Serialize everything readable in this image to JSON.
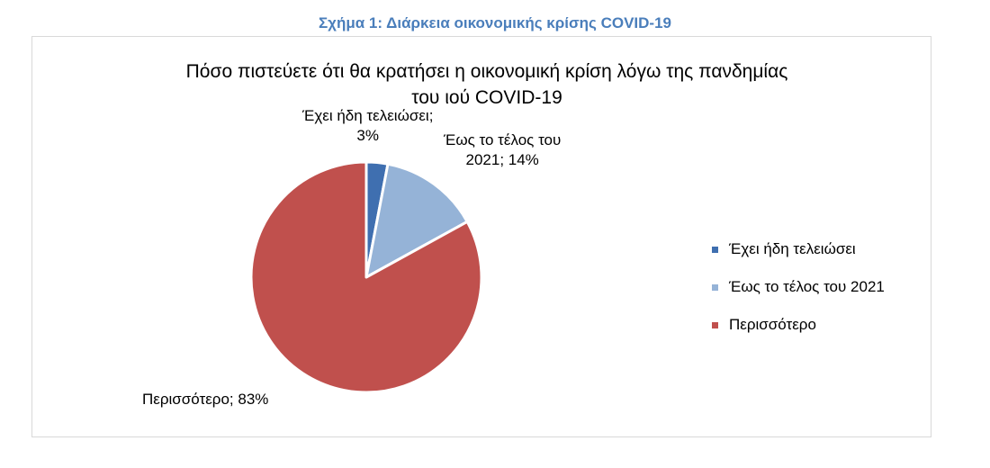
{
  "figure": {
    "caption": "Σχήμα 1: Διάρκεια οικονομικής κρίσης COVID-19"
  },
  "chart_data": {
    "type": "pie",
    "title_line1": "Πόσο πιστεύετε ότι θα κρατήσει η οικονομική κρίση λόγω της πανδημίας",
    "title_line2": "του ιού COVID-19",
    "legend_position": "right",
    "slices": [
      {
        "label": "Έχει ήδη τελειώσει",
        "value": 3,
        "color": "#3f6fb0",
        "label_line1": "Έχει ήδη τελειώσει;",
        "label_line2": "3%"
      },
      {
        "label": "Έως το τέλος του 2021",
        "value": 14,
        "color": "#95b3d7",
        "label_line1": "Έως το τέλος του",
        "label_line2": "2021; 14%"
      },
      {
        "label": "Περισσότερο",
        "value": 83,
        "color": "#c0504d",
        "label_line1": "Περισσότερο; 83%",
        "label_line2": ""
      }
    ]
  }
}
